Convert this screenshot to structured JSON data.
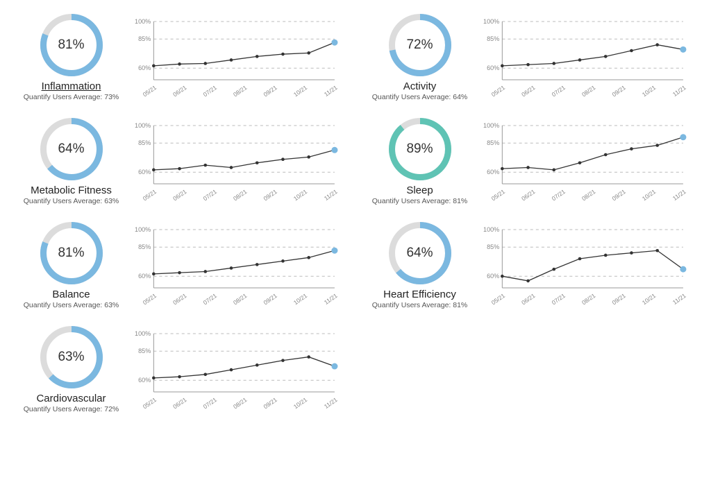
{
  "global": {
    "donut_track_color": "#dcdcdc",
    "donut_stroke_width": 9,
    "grid_color": "#bbbbbb",
    "axis_color": "#999999",
    "line_color": "#333333",
    "dot_color": "#333333",
    "tick_color": "#888888",
    "background": "#ffffff",
    "ytick_fontsize": 9,
    "xtick_fontsize": 8.5,
    "pct_fontsize": 19,
    "title_fontsize": 15,
    "sub_fontsize": 10.5
  },
  "chart_axes": {
    "xlabels": [
      "05/21",
      "06/21",
      "07/21",
      "08/21",
      "09/21",
      "10/21",
      "11/21"
    ],
    "ylabels": [
      "60%",
      "85%",
      "100%"
    ],
    "yvalues": [
      60,
      85,
      100
    ],
    "ylim": [
      50,
      100
    ]
  },
  "panels": [
    {
      "id": "inflammation",
      "title": "Inflammation",
      "title_underline": true,
      "subtitle": "Quantify Users Average: 73%",
      "pct": 81,
      "donut_fill_color": "#7bb8e0",
      "final_dot_color": "#7bb8e0",
      "series": [
        62,
        63.5,
        64,
        67,
        70,
        72,
        73,
        82
      ]
    },
    {
      "id": "activity",
      "title": "Activity",
      "title_underline": false,
      "subtitle": "Quantify Users Average: 64%",
      "pct": 72,
      "donut_fill_color": "#7bb8e0",
      "final_dot_color": "#7bb8e0",
      "series": [
        62,
        63,
        64,
        67,
        70,
        75,
        80,
        76
      ]
    },
    {
      "id": "metabolic",
      "title": "Metabolic Fitness",
      "title_underline": false,
      "subtitle": "Quantify Users Average: 63%",
      "pct": 64,
      "donut_fill_color": "#7bb8e0",
      "final_dot_color": "#7bb8e0",
      "series": [
        62,
        63,
        66,
        64,
        68,
        71,
        73,
        79
      ]
    },
    {
      "id": "sleep",
      "title": "Sleep",
      "title_underline": false,
      "subtitle": "Quantify Users Average: 81%",
      "pct": 89,
      "donut_fill_color": "#5fc3b4",
      "final_dot_color": "#7bb8e0",
      "series": [
        63,
        64,
        62,
        68,
        75,
        80,
        83,
        90
      ]
    },
    {
      "id": "balance",
      "title": "Balance",
      "title_underline": false,
      "subtitle": "Quantify Users Average: 63%",
      "pct": 81,
      "donut_fill_color": "#7bb8e0",
      "final_dot_color": "#7bb8e0",
      "series": [
        62,
        63,
        64,
        67,
        70,
        73,
        76,
        82
      ]
    },
    {
      "id": "heart",
      "title": "Heart Efficiency",
      "title_underline": false,
      "subtitle": "Quantify Users Average: 81%",
      "pct": 64,
      "donut_fill_color": "#7bb8e0",
      "final_dot_color": "#7bb8e0",
      "series": [
        60,
        56,
        66,
        75,
        78,
        80,
        82,
        66
      ]
    },
    {
      "id": "cardio",
      "title": "Cardiovascular",
      "title_underline": false,
      "subtitle": "Quantify Users Average: 72%",
      "pct": 63,
      "donut_fill_color": "#7bb8e0",
      "final_dot_color": "#7bb8e0",
      "series": [
        62,
        63,
        65,
        69,
        73,
        77,
        80,
        72
      ]
    }
  ]
}
